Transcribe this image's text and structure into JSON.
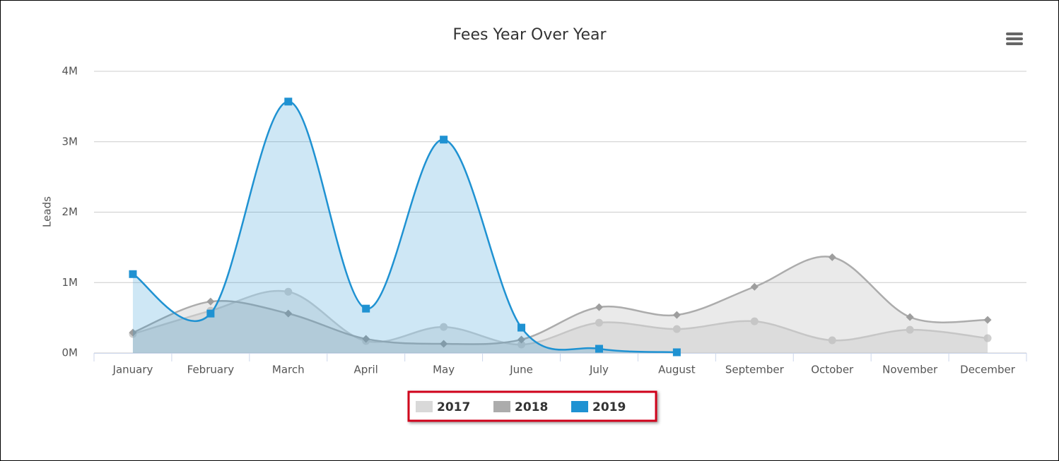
{
  "chart_data": {
    "type": "areaspline",
    "title": "Fees Year Over Year",
    "y_label": "Leads",
    "categories": [
      "January",
      "February",
      "March",
      "April",
      "May",
      "June",
      "July",
      "August",
      "September",
      "October",
      "November",
      "December"
    ],
    "series": [
      {
        "name": "2017",
        "color": "#d9d9d9",
        "marker": "circle",
        "values": [
          270000,
          600000,
          870000,
          170000,
          370000,
          120000,
          430000,
          340000,
          450000,
          180000,
          330000,
          210000
        ]
      },
      {
        "name": "2018",
        "color": "#acacac",
        "marker": "diamond",
        "values": [
          290000,
          730000,
          560000,
          200000,
          130000,
          190000,
          650000,
          540000,
          940000,
          1360000,
          510000,
          470000
        ]
      },
      {
        "name": "2019",
        "color": "#1f92d2",
        "marker": "square",
        "values": [
          1120000,
          560000,
          3570000,
          630000,
          3030000,
          360000,
          60000,
          10000,
          null,
          null,
          null,
          null
        ]
      }
    ],
    "ylim": [
      0,
      4000000
    ],
    "yticks": [
      {
        "value": 0,
        "label": "0M"
      },
      {
        "value": 1000000,
        "label": "1M"
      },
      {
        "value": 2000000,
        "label": "2M"
      },
      {
        "value": 3000000,
        "label": "3M"
      },
      {
        "value": 4000000,
        "label": "4M"
      }
    ],
    "grid": true,
    "legend": "bottom"
  }
}
